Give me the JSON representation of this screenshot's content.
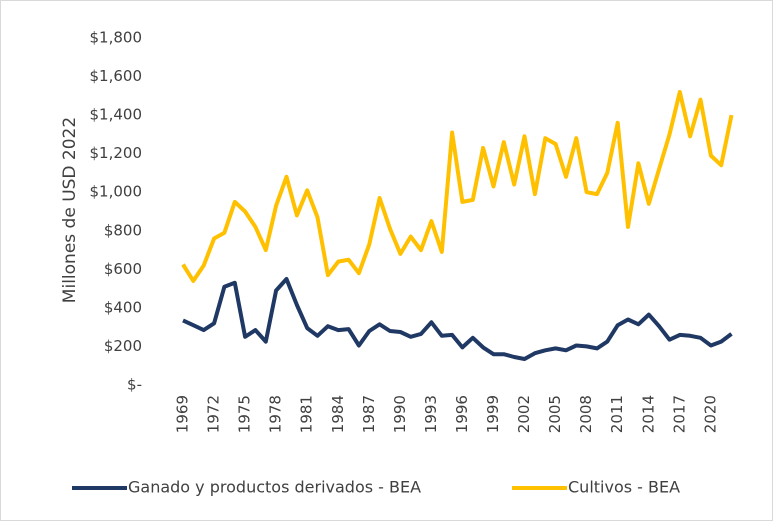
{
  "chart_data": {
    "type": "line",
    "y_label": "Millones de USD 2022",
    "categories": [
      "1969",
      null,
      null,
      "1972",
      null,
      null,
      "1975",
      null,
      null,
      "1978",
      null,
      null,
      "1981",
      null,
      null,
      "1984",
      null,
      null,
      "1987",
      null,
      null,
      "1990",
      null,
      null,
      "1993",
      null,
      null,
      "1996",
      null,
      null,
      "1999",
      null,
      null,
      "2002",
      null,
      null,
      "2005",
      null,
      null,
      "2008",
      null,
      null,
      "2011",
      null,
      null,
      "2014",
      null,
      null,
      "2017",
      null,
      null,
      "2020",
      null,
      null
    ],
    "series": [
      {
        "name": "Ganado y productos derivados - BEA",
        "color": "#1f3864",
        "values": [
          335,
          310,
          285,
          320,
          510,
          530,
          250,
          285,
          225,
          490,
          550,
          415,
          295,
          255,
          305,
          285,
          290,
          205,
          280,
          315,
          280,
          275,
          250,
          265,
          325,
          255,
          260,
          195,
          245,
          195,
          160,
          160,
          145,
          135,
          165,
          180,
          190,
          180,
          205,
          200,
          190,
          225,
          310,
          340,
          315,
          365,
          305,
          235,
          260,
          255,
          245,
          205,
          225,
          265
        ]
      },
      {
        "name": "Cultivos - BEA",
        "color": "#ffc000",
        "values": [
          625,
          540,
          620,
          760,
          790,
          950,
          900,
          820,
          700,
          930,
          1080,
          880,
          1010,
          870,
          570,
          640,
          650,
          580,
          730,
          970,
          810,
          680,
          770,
          700,
          850,
          690,
          1310,
          950,
          960,
          1230,
          1030,
          1260,
          1040,
          1290,
          990,
          1280,
          1250,
          1080,
          1280,
          1000,
          990,
          1100,
          1360,
          820,
          1150,
          940,
          1120,
          1300,
          1520,
          1290,
          1480,
          1190,
          1140,
          1400
        ]
      }
    ],
    "ylim": [
      0,
      1800
    ],
    "yticks": [
      {
        "value": 0,
        "label": "$-"
      },
      {
        "value": 200,
        "label": "$200"
      },
      {
        "value": 400,
        "label": "$400"
      },
      {
        "value": 600,
        "label": "$600"
      },
      {
        "value": 800,
        "label": "$800"
      },
      {
        "value": 1000,
        "label": "$1,000"
      },
      {
        "value": 1200,
        "label": "$1,200"
      },
      {
        "value": 1400,
        "label": "$1,400"
      },
      {
        "value": 1600,
        "label": "$1,600"
      },
      {
        "value": 1800,
        "label": "$1,800"
      }
    ],
    "legend": "bottom"
  }
}
